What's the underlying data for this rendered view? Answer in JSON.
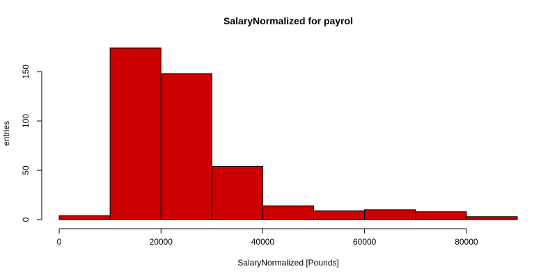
{
  "chart_data": {
    "type": "bar",
    "title": "SalaryNormalized for payrol",
    "xlabel": "SalaryNormalized [Pounds]",
    "ylabel": "entries",
    "bin_edges": [
      0,
      10000,
      20000,
      30000,
      40000,
      50000,
      60000,
      70000,
      80000,
      90000
    ],
    "values": [
      4,
      174,
      148,
      54,
      14,
      9,
      10,
      8,
      3
    ],
    "xlim": [
      0,
      90000
    ],
    "ylim": [
      0,
      174
    ],
    "x_ticks": [
      0,
      20000,
      40000,
      60000,
      80000
    ],
    "y_ticks": [
      0,
      50,
      100,
      150
    ],
    "bar_color": "#cc0000",
    "grid": false
  }
}
